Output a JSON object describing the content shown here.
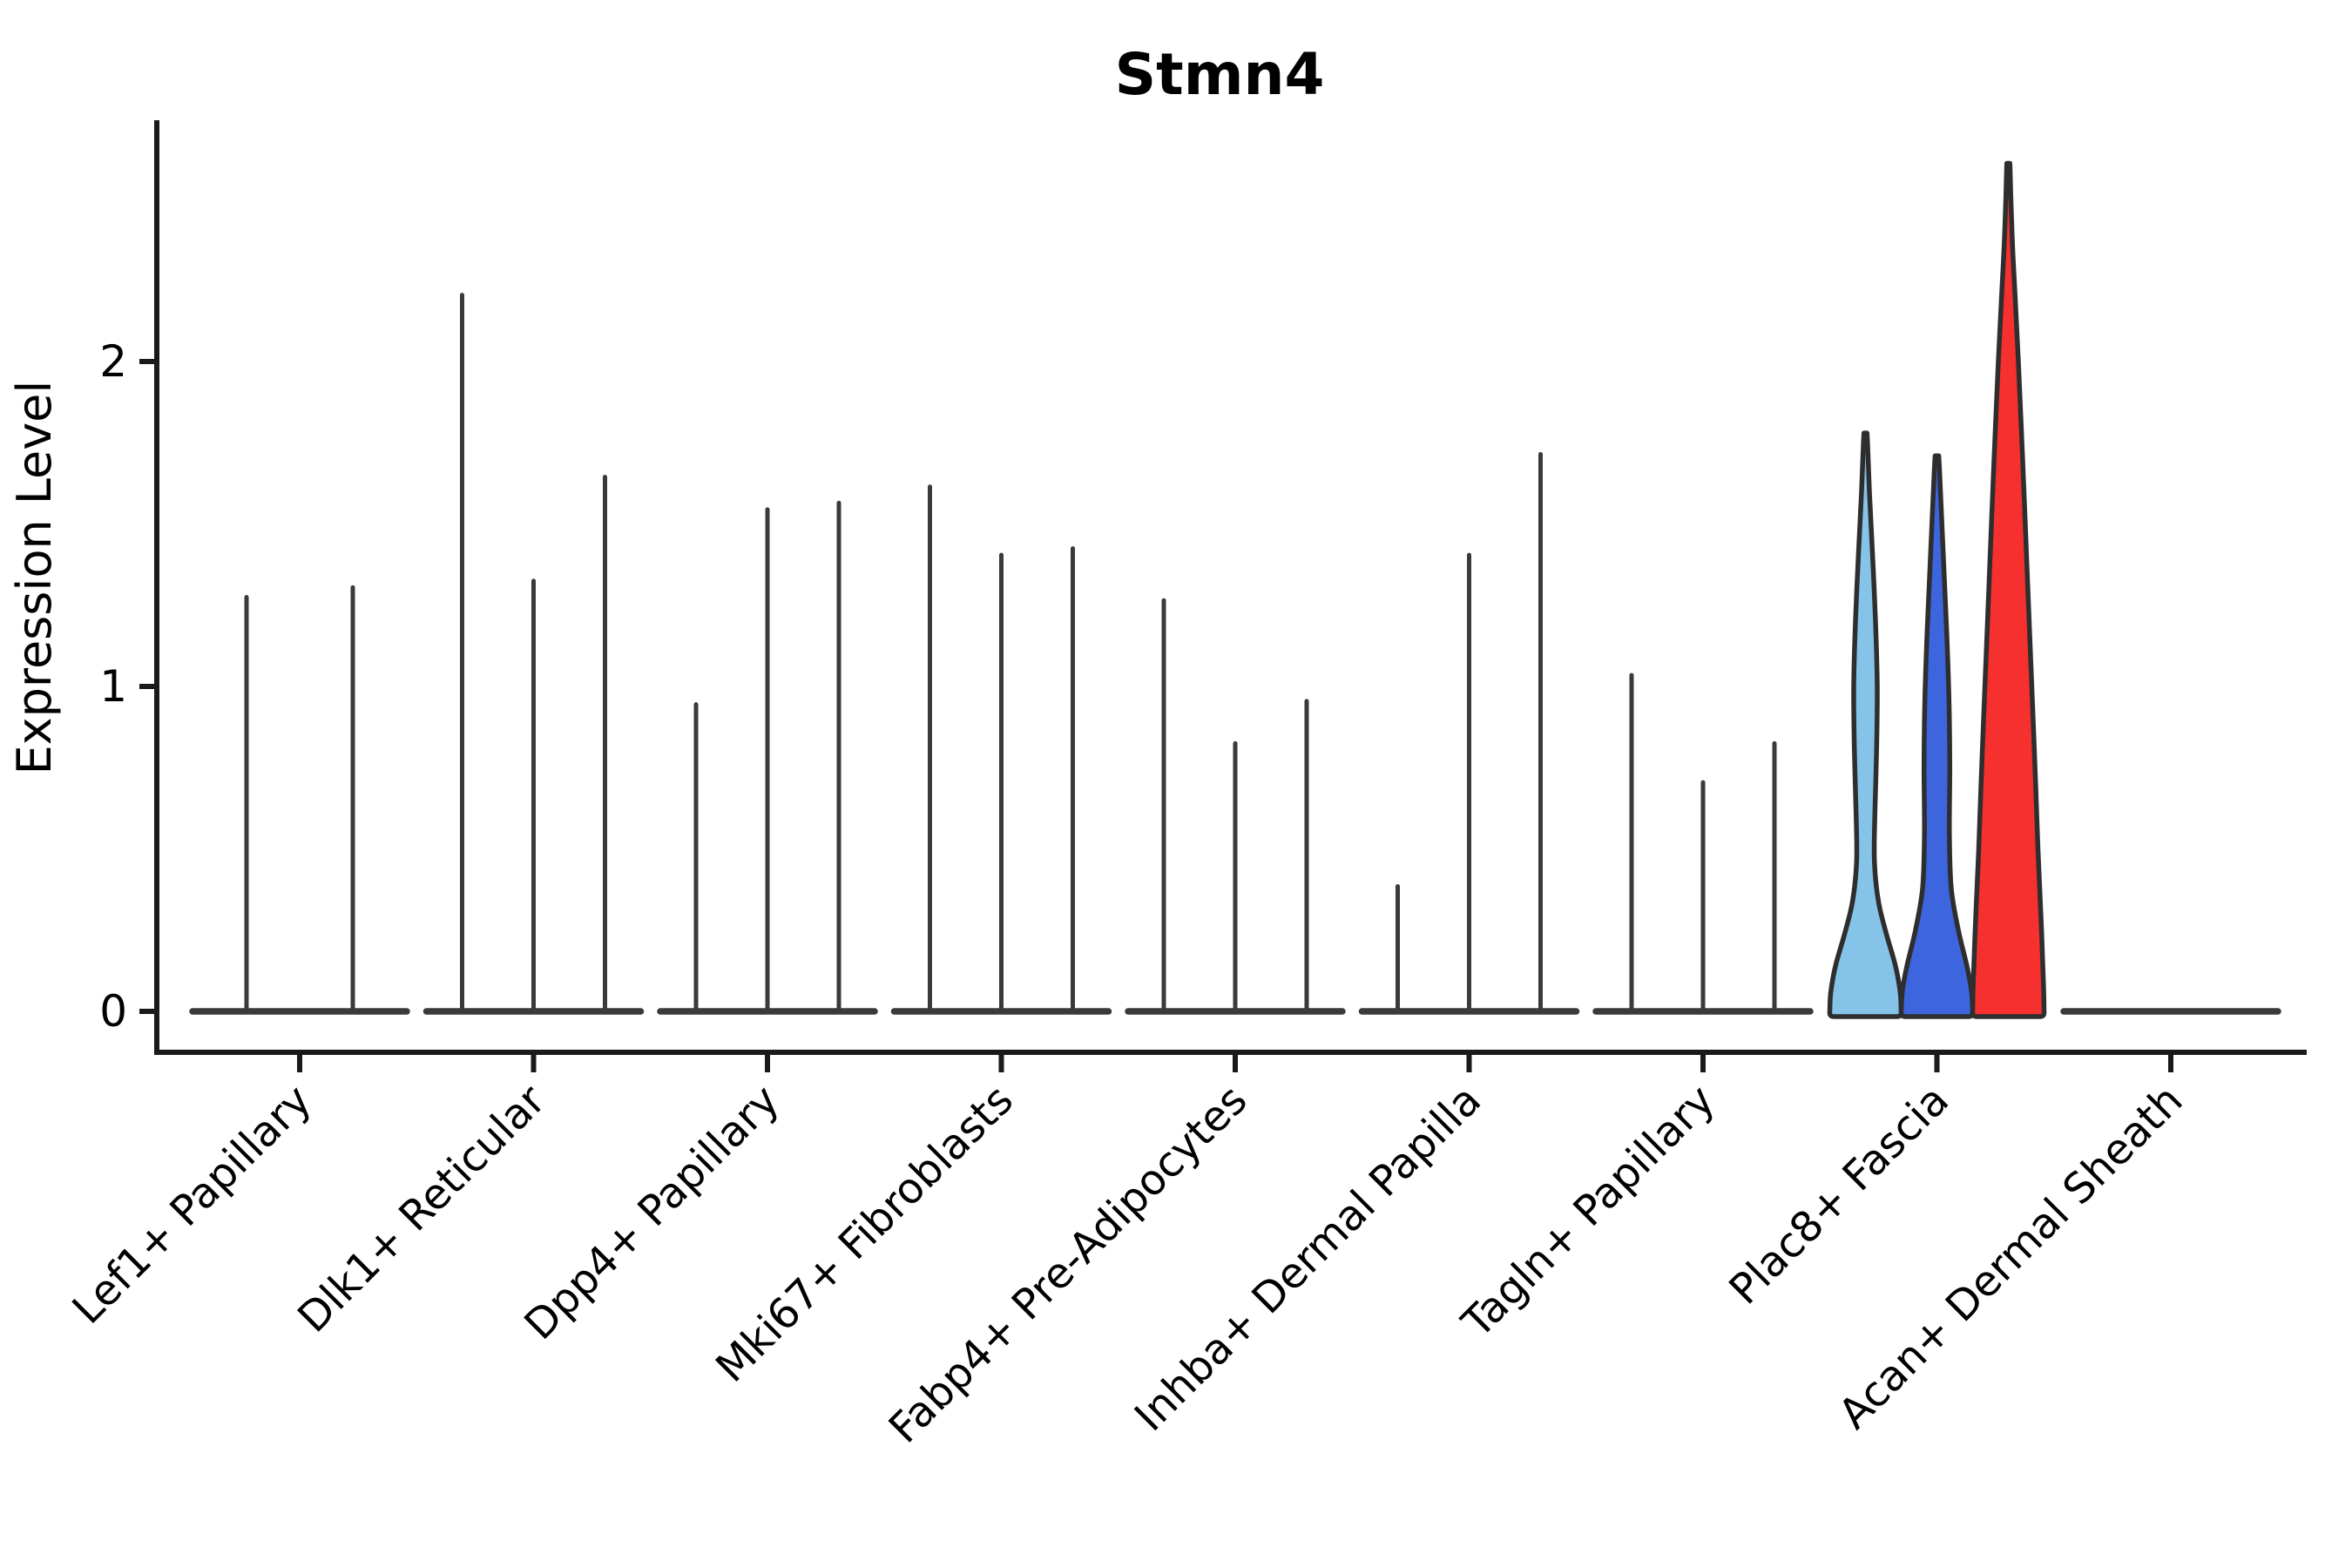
{
  "figure": {
    "background": "#FFFFFF"
  },
  "chart_data": {
    "type": "violin",
    "title": "Stmn4",
    "ylabel": "Expression Level",
    "xlabel": "",
    "yticks": [
      0,
      1,
      2
    ],
    "ylim": [
      0,
      2.75
    ],
    "grid": false,
    "legend": null,
    "style": {
      "spike_color": "#3A3A3A",
      "axis_color": "#1A1A1A",
      "outline_color": "#2E2E2E",
      "highlight_colors": {
        "light_blue": "#85C4E8",
        "blue": "#3D66DE",
        "red": "#F5302F"
      }
    },
    "categories": [
      {
        "label": "Lef1+ Papillary",
        "violins": [
          {
            "max": 1.28
          },
          {
            "max": 1.31
          }
        ]
      },
      {
        "label": "Dlk1+ Reticular",
        "violins": [
          {
            "max": 2.21
          },
          {
            "max": 1.33
          },
          {
            "max": 1.65
          }
        ]
      },
      {
        "label": "Dpp4+ Papillary",
        "violins": [
          {
            "max": 0.95
          },
          {
            "max": 1.55
          },
          {
            "max": 1.57
          }
        ]
      },
      {
        "label": "Mki67+ Fibroblasts",
        "violins": [
          {
            "max": 1.62
          },
          {
            "max": 1.41
          },
          {
            "max": 1.43
          }
        ]
      },
      {
        "label": "Fabp4+ Pre-Adipocytes",
        "violins": [
          {
            "max": 1.27
          },
          {
            "max": 0.83
          },
          {
            "max": 0.96
          }
        ]
      },
      {
        "label": "Inhba+ Dermal Papilla",
        "violins": [
          {
            "max": 0.39
          },
          {
            "max": 1.41
          },
          {
            "max": 1.72
          }
        ]
      },
      {
        "label": "Tagln+ Papillary",
        "violins": [
          {
            "max": 1.04
          },
          {
            "max": 0.71
          },
          {
            "max": 0.83
          }
        ]
      },
      {
        "label": "Plac8+ Fascia",
        "violins": [
          {
            "max": 1.78,
            "color": "#85C4E8",
            "profile": [
              [
                0,
                1
              ],
              [
                0.06,
                0.97
              ],
              [
                0.14,
                0.84
              ],
              [
                0.24,
                0.58
              ],
              [
                0.34,
                0.36
              ],
              [
                0.46,
                0.25
              ],
              [
                0.6,
                0.26
              ],
              [
                0.8,
                0.31
              ],
              [
                1.0,
                0.33
              ],
              [
                1.2,
                0.28
              ],
              [
                1.4,
                0.2
              ],
              [
                1.6,
                0.11
              ],
              [
                1.74,
                0.06
              ],
              [
                1.78,
                0.045
              ]
            ]
          },
          {
            "max": 1.71,
            "color": "#3D66DE",
            "profile": [
              [
                0,
                1
              ],
              [
                0.06,
                0.97
              ],
              [
                0.14,
                0.84
              ],
              [
                0.25,
                0.6
              ],
              [
                0.38,
                0.4
              ],
              [
                0.55,
                0.35
              ],
              [
                0.75,
                0.36
              ],
              [
                0.95,
                0.34
              ],
              [
                1.15,
                0.28
              ],
              [
                1.35,
                0.2
              ],
              [
                1.55,
                0.12
              ],
              [
                1.67,
                0.07
              ],
              [
                1.71,
                0.05
              ]
            ]
          },
          {
            "max": 2.61,
            "color": "#F5302F",
            "profile": [
              [
                0,
                1
              ],
              [
                0.08,
                0.985
              ],
              [
                0.25,
                0.93
              ],
              [
                0.5,
                0.83
              ],
              [
                0.8,
                0.73
              ],
              [
                1.1,
                0.62
              ],
              [
                1.4,
                0.51
              ],
              [
                1.7,
                0.4
              ],
              [
                2.0,
                0.28
              ],
              [
                2.2,
                0.19
              ],
              [
                2.35,
                0.12
              ],
              [
                2.5,
                0.07
              ],
              [
                2.61,
                0.045
              ]
            ]
          }
        ]
      },
      {
        "label": "Acan+ Dermal Sheath",
        "violins": [
          {
            "max": 0
          },
          {
            "max": 0
          },
          {
            "max": 0
          }
        ]
      }
    ]
  }
}
